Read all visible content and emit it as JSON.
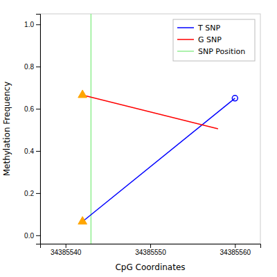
{
  "chart_data": {
    "type": "line",
    "x_label": "CpG Coordinates",
    "y_label": "Methylation Frequency",
    "series": [
      {
        "name": "T SNP",
        "type": "line",
        "color": "blue",
        "x": [
          34385542,
          34385560
        ],
        "values": [
          0.065,
          0.65
        ]
      },
      {
        "name": "G SNP",
        "type": "line",
        "color": "red",
        "x": [
          34385542,
          34385558
        ],
        "values": [
          0.665,
          0.505
        ]
      },
      {
        "name": "SNP Position",
        "type": "vline",
        "color": "#90EE90",
        "x": [
          34385543
        ]
      },
      {
        "type": "scatter",
        "marker": "triangle",
        "color": "#FFA500",
        "x": [
          34385542,
          34385542
        ],
        "values": [
          0.665,
          0.065
        ]
      },
      {
        "type": "scatter",
        "marker": "open-circle",
        "color": "blue",
        "x": [
          34385560
        ],
        "values": [
          0.65
        ]
      }
    ],
    "xlim": [
      34385537,
      34385563
    ],
    "ylim": [
      -0.04,
      1.05
    ],
    "xticks": [
      34385540,
      34385550,
      34385560
    ],
    "yticks": [
      {
        "value": 0.0,
        "label": "0.0"
      },
      0.2,
      0.4,
      0.6,
      0.8,
      {
        "value": 1.0,
        "label": "1.0"
      }
    ],
    "grid": false,
    "legend": "top-right"
  }
}
